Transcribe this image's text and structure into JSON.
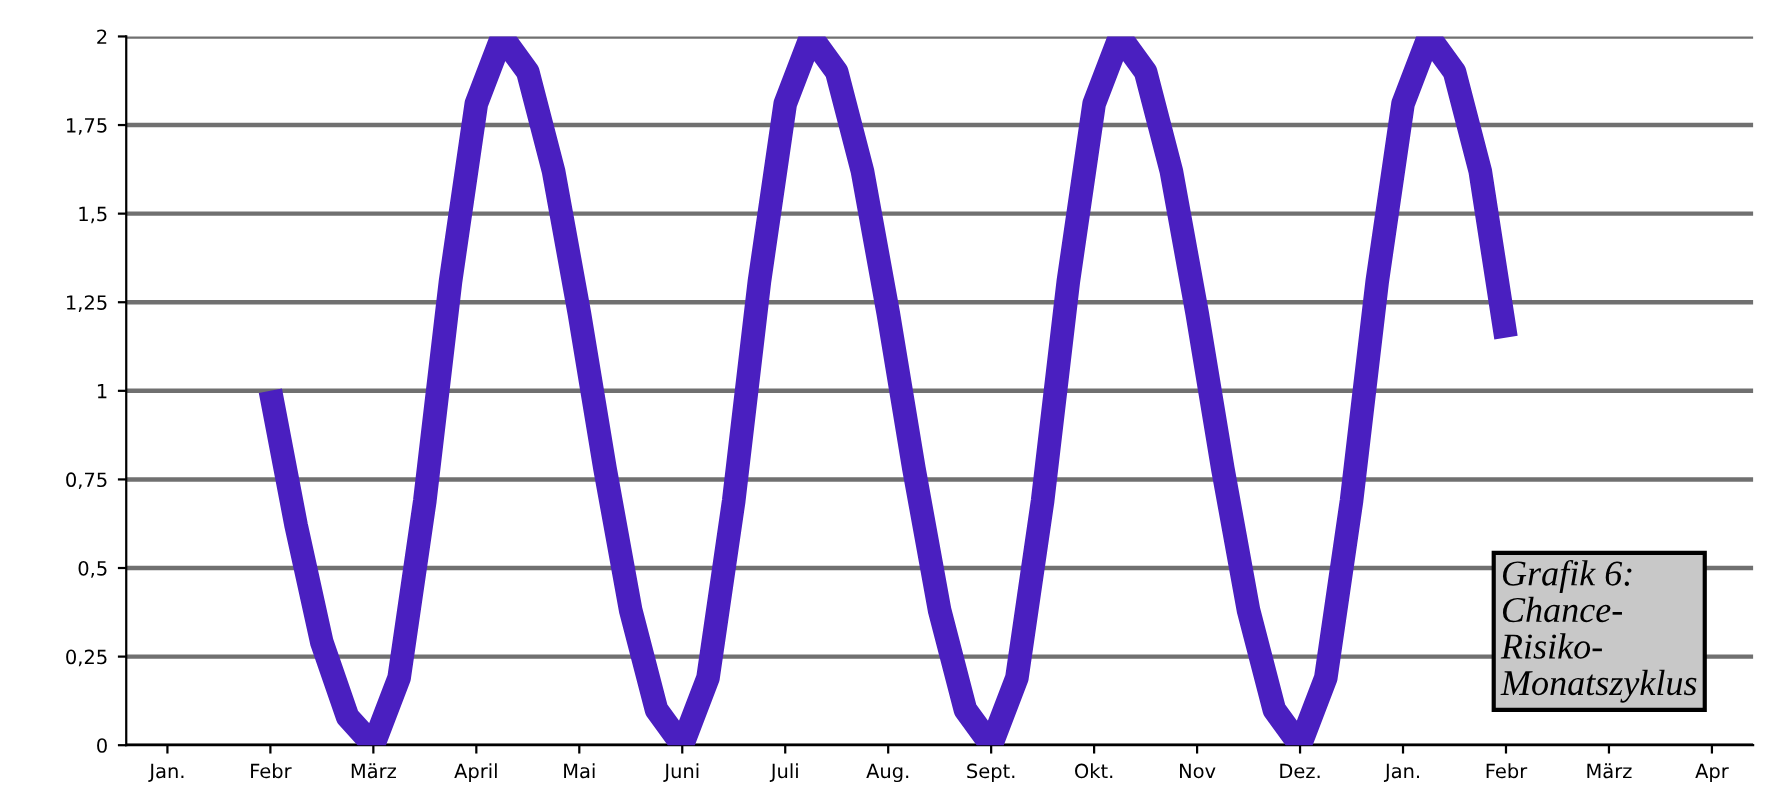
{
  "chart_data": {
    "type": "line",
    "categories": [
      "Jan.",
      null,
      null,
      null,
      "Febr",
      null,
      null,
      null,
      "März",
      null,
      null,
      null,
      "April",
      null,
      null,
      null,
      "Mai",
      null,
      null,
      null,
      "Juni",
      null,
      null,
      null,
      "Juli",
      null,
      null,
      null,
      "Aug.",
      null,
      null,
      null,
      "Sept.",
      null,
      null,
      null,
      "Okt.",
      null,
      null,
      null,
      "Nov",
      null,
      null,
      null,
      "Dez.",
      null,
      null,
      null,
      "Jan.",
      null,
      null,
      null,
      "Febr",
      null,
      null,
      null,
      "März",
      null,
      null,
      null,
      "Apr"
    ],
    "ylim": [
      0,
      2
    ],
    "yticks": [
      0,
      {
        "value": 0.25,
        "label": "0,25"
      },
      {
        "value": 0.5,
        "label": "0,5"
      },
      {
        "value": 0.75,
        "label": "0,75"
      },
      1,
      {
        "value": 1.25,
        "label": "1,25"
      },
      {
        "value": 1.5,
        "label": "1,5"
      },
      {
        "value": 1.75,
        "label": "1,75"
      },
      2
    ],
    "grid": "y",
    "legend": false,
    "marker": "none",
    "line_style": "solid",
    "series": [
      {
        "color": "#4a1fc0",
        "values": [
          null,
          null,
          null,
          null,
          1.0,
          0.62,
          0.29,
          0.08,
          0,
          0.19,
          0.69,
          1.31,
          1.81,
          2,
          1.9,
          1.62,
          1.22,
          0.78,
          0.38,
          0.1,
          0,
          0.19,
          0.69,
          1.31,
          1.81,
          2,
          1.9,
          1.62,
          1.22,
          0.78,
          0.38,
          0.1,
          0,
          0.19,
          0.69,
          1.31,
          1.81,
          2,
          1.9,
          1.62,
          1.22,
          0.78,
          0.38,
          0.1,
          0,
          0.19,
          0.69,
          1.31,
          1.81,
          2,
          1.9,
          1.62,
          1.15,
          null,
          null,
          null,
          null,
          null,
          null,
          null,
          null
        ]
      }
    ],
    "annotations": [
      "Grafik 6:\nChance-\nRisiko-\nMonatszyklus"
    ]
  }
}
